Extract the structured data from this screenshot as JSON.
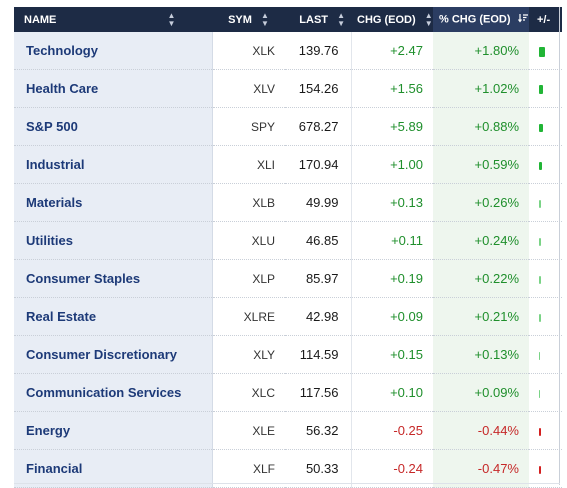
{
  "columns": {
    "name": "NAME",
    "sym": "SYM",
    "last": "LAST",
    "chg": "CHG (EOD)",
    "pct": "% CHG (EOD)",
    "bar": "+/-"
  },
  "rows": [
    {
      "name": "Technology",
      "sym": "XLK",
      "last": "139.76",
      "chg": "+2.47",
      "pct": "+1.80%",
      "pct_value": 1.8
    },
    {
      "name": "Health Care",
      "sym": "XLV",
      "last": "154.26",
      "chg": "+1.56",
      "pct": "+1.02%",
      "pct_value": 1.02
    },
    {
      "name": "S&P 500",
      "sym": "SPY",
      "last": "678.27",
      "chg": "+5.89",
      "pct": "+0.88%",
      "pct_value": 0.88
    },
    {
      "name": "Industrial",
      "sym": "XLI",
      "last": "170.94",
      "chg": "+1.00",
      "pct": "+0.59%",
      "pct_value": 0.59
    },
    {
      "name": "Materials",
      "sym": "XLB",
      "last": "49.99",
      "chg": "+0.13",
      "pct": "+0.26%",
      "pct_value": 0.26
    },
    {
      "name": "Utilities",
      "sym": "XLU",
      "last": "46.85",
      "chg": "+0.11",
      "pct": "+0.24%",
      "pct_value": 0.24
    },
    {
      "name": "Consumer Staples",
      "sym": "XLP",
      "last": "85.97",
      "chg": "+0.19",
      "pct": "+0.22%",
      "pct_value": 0.22
    },
    {
      "name": "Real Estate",
      "sym": "XLRE",
      "last": "42.98",
      "chg": "+0.09",
      "pct": "+0.21%",
      "pct_value": 0.21
    },
    {
      "name": "Consumer Discretionary",
      "sym": "XLY",
      "last": "114.59",
      "chg": "+0.15",
      "pct": "+0.13%",
      "pct_value": 0.13
    },
    {
      "name": "Communication Services",
      "sym": "XLC",
      "last": "117.56",
      "chg": "+0.10",
      "pct": "+0.09%",
      "pct_value": 0.09
    },
    {
      "name": "Energy",
      "sym": "XLE",
      "last": "56.32",
      "chg": "-0.25",
      "pct": "-0.44%",
      "pct_value": -0.44
    },
    {
      "name": "Financial",
      "sym": "XLF",
      "last": "50.33",
      "chg": "-0.24",
      "pct": "-0.47%",
      "pct_value": -0.47
    }
  ],
  "colors": {
    "header_bg": "#1d2b45",
    "name_col_bg": "#e8edf5",
    "positive": "#1f8f2c",
    "negative": "#c62828",
    "bar_positive": "#21b536",
    "bar_negative": "#d32020"
  },
  "icons": {
    "sort": "sort-updown-icon",
    "sort_desc": "sort-descending-icon"
  }
}
